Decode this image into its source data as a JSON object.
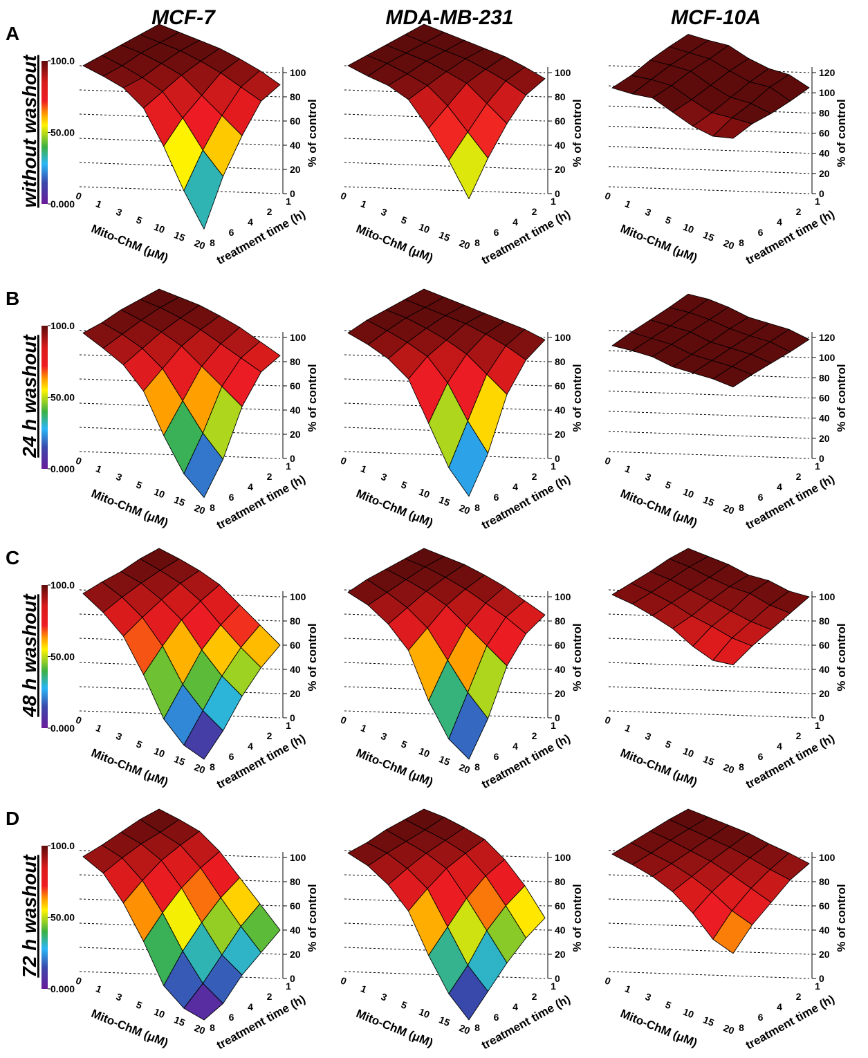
{
  "columns": [
    "MCF-7",
    "MDA-MB-231",
    "MCF-10A"
  ],
  "rows": [
    {
      "letter": "A",
      "label": "without washout"
    },
    {
      "letter": "B",
      "label": "24 h washout"
    },
    {
      "letter": "C",
      "label": "48 h washout"
    },
    {
      "letter": "D",
      "label": "72 h washout"
    }
  ],
  "axes": {
    "x_label": "Mito-ChM (μM)",
    "x_categories": [
      0,
      1,
      3,
      5,
      10,
      15,
      20
    ],
    "y_label": "treatment time (h)",
    "y_categories": [
      1,
      2,
      4,
      6,
      8
    ],
    "z_label": "% of control"
  },
  "colorbar": {
    "clim": [
      0,
      100
    ],
    "ticks": [
      {
        "value": 100,
        "label": "100.0"
      },
      {
        "value": 50,
        "label": "50.00"
      },
      {
        "value": 0,
        "label": "0.000"
      }
    ]
  },
  "chart_data": [
    {
      "type": "surface",
      "colorbar": true,
      "zlim": [
        0,
        100
      ],
      "zticks": [
        0,
        20,
        40,
        60,
        80,
        100
      ],
      "z": [
        [
          100,
          100,
          100,
          100,
          98,
          95,
          90
        ],
        [
          100,
          100,
          100,
          98,
          95,
          90,
          85
        ],
        [
          100,
          100,
          98,
          95,
          85,
          75,
          65
        ],
        [
          100,
          98,
          95,
          90,
          75,
          55,
          40
        ],
        [
          100,
          98,
          95,
          85,
          60,
          30,
          5
        ]
      ]
    },
    {
      "type": "surface",
      "zlim": [
        0,
        100
      ],
      "zticks": [
        0,
        20,
        40,
        60,
        80,
        100
      ],
      "z": [
        [
          100,
          100,
          100,
          100,
          100,
          98,
          95
        ],
        [
          100,
          100,
          100,
          100,
          98,
          95,
          90
        ],
        [
          100,
          100,
          100,
          98,
          95,
          85,
          75
        ],
        [
          100,
          100,
          98,
          95,
          85,
          70,
          55
        ],
        [
          100,
          98,
          97,
          92,
          75,
          55,
          30
        ]
      ]
    },
    {
      "type": "surface",
      "zlim": [
        0,
        120
      ],
      "zticks": [
        0,
        20,
        40,
        60,
        80,
        100,
        120
      ],
      "z": [
        [
          110,
          112,
          115,
          110,
          108,
          110,
          105
        ],
        [
          108,
          110,
          112,
          108,
          105,
          108,
          102
        ],
        [
          105,
          108,
          110,
          104,
          100,
          102,
          100
        ],
        [
          100,
          104,
          106,
          100,
          95,
          98,
          100
        ],
        [
          98,
          100,
          104,
          98,
          92,
          90,
          96
        ]
      ]
    },
    {
      "type": "surface",
      "colorbar": true,
      "zlim": [
        0,
        100
      ],
      "zticks": [
        0,
        20,
        40,
        60,
        80,
        100
      ],
      "z": [
        [
          100,
          100,
          100,
          98,
          95,
          90,
          85
        ],
        [
          100,
          100,
          98,
          95,
          90,
          85,
          80
        ],
        [
          100,
          98,
          95,
          90,
          80,
          70,
          60
        ],
        [
          98,
          95,
          90,
          80,
          60,
          40,
          25
        ],
        [
          98,
          92,
          85,
          70,
          40,
          15,
          2
        ]
      ]
    },
    {
      "type": "surface",
      "zlim": [
        0,
        100
      ],
      "zticks": [
        0,
        20,
        40,
        60,
        80,
        100
      ],
      "z": [
        [
          100,
          100,
          100,
          100,
          100,
          100,
          98
        ],
        [
          100,
          100,
          100,
          100,
          98,
          95,
          90
        ],
        [
          100,
          100,
          98,
          95,
          90,
          80,
          70
        ],
        [
          100,
          98,
          95,
          90,
          75,
          50,
          30
        ],
        [
          98,
          95,
          90,
          80,
          50,
          20,
          3
        ]
      ]
    },
    {
      "type": "surface",
      "zlim": [
        0,
        120
      ],
      "zticks": [
        0,
        20,
        40,
        60,
        80,
        100,
        120
      ],
      "z": [
        [
          115,
          118,
          118,
          116,
          118,
          120,
          118
        ],
        [
          112,
          115,
          116,
          115,
          116,
          118,
          116
        ],
        [
          110,
          112,
          114,
          112,
          114,
          116,
          115
        ],
        [
          108,
          110,
          112,
          110,
          112,
          114,
          114
        ],
        [
          105,
          108,
          110,
          108,
          110,
          112,
          112
        ]
      ]
    },
    {
      "type": "surface",
      "colorbar": true,
      "zlim": [
        0,
        100
      ],
      "zticks": [
        0,
        20,
        40,
        60,
        80,
        100
      ],
      "z": [
        [
          100,
          98,
          95,
          90,
          80,
          70,
          60
        ],
        [
          100,
          97,
          93,
          85,
          72,
          60,
          50
        ],
        [
          98,
          95,
          88,
          78,
          60,
          45,
          35
        ],
        [
          98,
          92,
          82,
          65,
          40,
          25,
          15
        ],
        [
          97,
          88,
          75,
          50,
          20,
          5,
          0
        ]
      ]
    },
    {
      "type": "surface",
      "zlim": [
        0,
        100
      ],
      "zticks": [
        0,
        20,
        40,
        60,
        80,
        100
      ],
      "z": [
        [
          100,
          100,
          100,
          98,
          95,
          90,
          85
        ],
        [
          100,
          100,
          98,
          95,
          90,
          85,
          78
        ],
        [
          100,
          98,
          95,
          90,
          80,
          70,
          60
        ],
        [
          100,
          96,
          90,
          80,
          60,
          40,
          25
        ],
        [
          98,
          94,
          85,
          70,
          35,
          10,
          0
        ]
      ]
    },
    {
      "type": "surface",
      "zlim": [
        0,
        100
      ],
      "zticks": [
        0,
        20,
        40,
        60,
        80,
        100
      ],
      "z": [
        [
          100,
          100,
          100,
          98,
          100,
          98,
          100
        ],
        [
          100,
          100,
          98,
          97,
          98,
          95,
          95
        ],
        [
          98,
          98,
          96,
          94,
          92,
          90,
          90
        ],
        [
          97,
          96,
          94,
          90,
          88,
          85,
          85
        ],
        [
          96,
          95,
          92,
          88,
          80,
          75,
          78
        ]
      ]
    },
    {
      "type": "surface",
      "colorbar": true,
      "zlim": [
        0,
        100
      ],
      "zticks": [
        0,
        20,
        40,
        60,
        80,
        100
      ],
      "z": [
        [
          100,
          98,
          95,
          85,
          70,
          55,
          40
        ],
        [
          100,
          96,
          92,
          80,
          62,
          45,
          30
        ],
        [
          98,
          95,
          88,
          72,
          50,
          30,
          20
        ],
        [
          96,
          92,
          80,
          60,
          35,
          15,
          5
        ],
        [
          95,
          88,
          70,
          45,
          15,
          3,
          0
        ]
      ]
    },
    {
      "type": "surface",
      "zlim": [
        0,
        100
      ],
      "zticks": [
        0,
        20,
        40,
        60,
        80,
        100
      ],
      "z": [
        [
          100,
          100,
          98,
          95,
          85,
          70,
          50
        ],
        [
          100,
          98,
          96,
          92,
          80,
          62,
          42
        ],
        [
          100,
          97,
          94,
          88,
          70,
          50,
          30
        ],
        [
          98,
          96,
          90,
          80,
          55,
          30,
          15
        ],
        [
          98,
          94,
          85,
          70,
          40,
          15,
          0
        ]
      ]
    },
    {
      "type": "surface",
      "zlim": [
        0,
        100
      ],
      "zticks": [
        0,
        20,
        40,
        60,
        80,
        100
      ],
      "z": [
        [
          100,
          100,
          100,
          100,
          98,
          97,
          95
        ],
        [
          100,
          99,
          98,
          97,
          95,
          92,
          90
        ],
        [
          99,
          98,
          96,
          94,
          90,
          85,
          80
        ],
        [
          98,
          96,
          94,
          90,
          84,
          75,
          70
        ],
        [
          97,
          95,
          92,
          86,
          75,
          60,
          55
        ]
      ]
    }
  ]
}
